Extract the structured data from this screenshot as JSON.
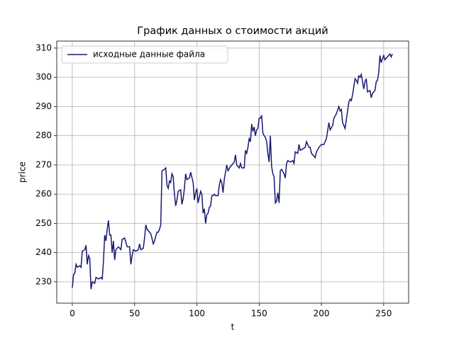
{
  "chart_data": {
    "type": "line",
    "title": "График данных о стоимости акций",
    "xlabel": "t",
    "ylabel": "price",
    "x": [
      0,
      1,
      2,
      3,
      4,
      6,
      7,
      8,
      10,
      11,
      12,
      13,
      14,
      15,
      16,
      18,
      19,
      21,
      23,
      24,
      25,
      26,
      27,
      28,
      29,
      30,
      31,
      32,
      33,
      34,
      35,
      37,
      39,
      40,
      42,
      44,
      46,
      47,
      48,
      49,
      51,
      53,
      54,
      55,
      57,
      58,
      59,
      60,
      62,
      63,
      65,
      66,
      68,
      69,
      70,
      71,
      72,
      74,
      75,
      76,
      77,
      78,
      79,
      80,
      81,
      82,
      83,
      84,
      85,
      87,
      88,
      89,
      90,
      91,
      92,
      94,
      95,
      97,
      98,
      99,
      100,
      101,
      102,
      103,
      104,
      105,
      106,
      107,
      108,
      109,
      110,
      111,
      112,
      113,
      114,
      115,
      117,
      118,
      119,
      120,
      121,
      122,
      123,
      124,
      125,
      127,
      129,
      130,
      131,
      132,
      133,
      134,
      135,
      136,
      138,
      139,
      140,
      141,
      142,
      143,
      144,
      145,
      146,
      147,
      148,
      149,
      150,
      151,
      152,
      153,
      154,
      155,
      156,
      157,
      158,
      159,
      160,
      161,
      162,
      163,
      164,
      165,
      166,
      167,
      168,
      170,
      171,
      172,
      173,
      175,
      177,
      178,
      179,
      181,
      182,
      183,
      185,
      187,
      188,
      189,
      190,
      191,
      192,
      194,
      195,
      196,
      198,
      200,
      202,
      204,
      206,
      207,
      209,
      210,
      212,
      214,
      215,
      216,
      217,
      219,
      220,
      222,
      223,
      224,
      225,
      227,
      228,
      229,
      230,
      231,
      232,
      234,
      235,
      236,
      237,
      239,
      240,
      241,
      243,
      244,
      245,
      246,
      247,
      248,
      250,
      251,
      253,
      254,
      255,
      256,
      257
    ],
    "series": [
      {
        "name": "исходные данные файла",
        "color": "#191970",
        "values": [
          228,
          232.5,
          233,
          236,
          235,
          235.5,
          235,
          240.5,
          241,
          242.5,
          236,
          239,
          238,
          227.5,
          230,
          229.5,
          231.5,
          231,
          231.5,
          231,
          237,
          246,
          244,
          248,
          251,
          246,
          246,
          240,
          244,
          237.5,
          241,
          242,
          241,
          244.5,
          245,
          242,
          242,
          236,
          239,
          241,
          240.5,
          241,
          243,
          241,
          241.5,
          245,
          249.5,
          248,
          247,
          246.5,
          243,
          244,
          247,
          247,
          248,
          249.5,
          268,
          268.5,
          269,
          263,
          262,
          264.5,
          264,
          267,
          266,
          260,
          256,
          258,
          261,
          261.5,
          256.5,
          258.5,
          262,
          267,
          265,
          265.5,
          267.5,
          264,
          258,
          260.5,
          262,
          257,
          259,
          261,
          260,
          253.5,
          255,
          250,
          253,
          253.5,
          255.5,
          256,
          259.5,
          259.5,
          260,
          259.5,
          259.5,
          263,
          265,
          264,
          260.5,
          265,
          267.5,
          270,
          268,
          269.5,
          270.5,
          271,
          273.5,
          270,
          269.5,
          269,
          270.5,
          269,
          269,
          275,
          274,
          276,
          279,
          278,
          284,
          281.5,
          283,
          280,
          282,
          282.5,
          286,
          286,
          287,
          281,
          280,
          279.5,
          278,
          274,
          271,
          280,
          269.5,
          267,
          266,
          257,
          257.5,
          260.5,
          257,
          268,
          268.5,
          267,
          265.5,
          270.5,
          271.5,
          271,
          271.5,
          270.5,
          274.5,
          274,
          277,
          275,
          275.5,
          276,
          278,
          277,
          276,
          276,
          274,
          273,
          272.5,
          274.5,
          276,
          277,
          277,
          279,
          284.5,
          282,
          283.5,
          286,
          287.5,
          290,
          288.5,
          289,
          284.5,
          282.5,
          285.5,
          291.5,
          292.5,
          292,
          294,
          299.5,
          299,
          298,
          300.5,
          300,
          301,
          296,
          298.5,
          299.5,
          295,
          295.5,
          293,
          294.5,
          295.5,
          298.5,
          299,
          301.5,
          307.5,
          305,
          307.5,
          306,
          307,
          307.5,
          308,
          307,
          308
        ]
      }
    ],
    "xlim": [
      -12.5,
      270
    ],
    "ylim": [
      222.7,
      312.4
    ],
    "xticks": [
      0,
      50,
      100,
      150,
      200,
      250
    ],
    "yticks": [
      230,
      240,
      250,
      260,
      270,
      280,
      290,
      300,
      310
    ],
    "grid": true,
    "legend": "upper left"
  }
}
